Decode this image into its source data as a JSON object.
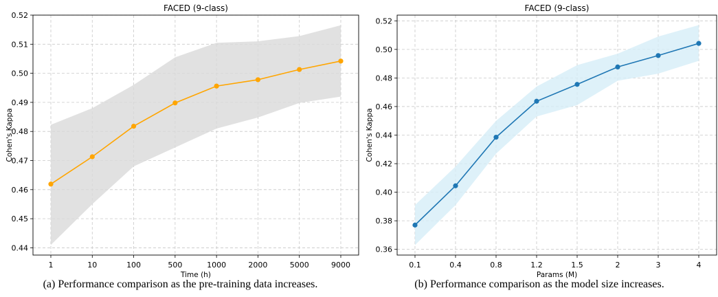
{
  "figure": {
    "captions": [
      "(a) Performance comparison as the pre-training data increases.",
      "(b) Performance comparison as the model size increases."
    ]
  },
  "chart_data": [
    {
      "type": "line",
      "title": "FACED (9-class)",
      "xlabel": "Time (h)",
      "ylabel": "Cohen's Kappa",
      "x_scale": "categorical",
      "categories": [
        "1",
        "10",
        "100",
        "500",
        "1000",
        "2000",
        "5000",
        "9000"
      ],
      "series": [
        {
          "values": [
            0.4619,
            0.4713,
            0.4818,
            0.4898,
            0.4956,
            0.4978,
            0.5013,
            0.5042
          ],
          "band_lower": [
            0.441,
            0.455,
            0.468,
            0.4745,
            0.481,
            0.4848,
            0.4898,
            0.492
          ],
          "band_upper": [
            0.4823,
            0.488,
            0.496,
            0.5055,
            0.5105,
            0.511,
            0.5128,
            0.5165
          ],
          "color": "#FFA500",
          "band_color": "#D9D9D9"
        }
      ],
      "ylim": [
        0.4375,
        0.52
      ],
      "yticks": [
        "0.44",
        "0.45",
        "0.46",
        "0.47",
        "0.48",
        "0.49",
        "0.50",
        "0.51",
        "0.52"
      ],
      "grid": true
    },
    {
      "type": "line",
      "title": "FACED (9-class)",
      "xlabel": "Params (M)",
      "ylabel": "Cohen's Kappa",
      "x_scale": "categorical",
      "categories": [
        "0.1",
        "0.4",
        "0.8",
        "1.2",
        "1.5",
        "2",
        "3",
        "4"
      ],
      "series": [
        {
          "values": [
            0.377,
            0.4045,
            0.4385,
            0.4637,
            0.4755,
            0.4877,
            0.4957,
            0.5042
          ],
          "band_lower": [
            0.363,
            0.391,
            0.427,
            0.453,
            0.461,
            0.478,
            0.483,
            0.492
          ],
          "band_upper": [
            0.391,
            0.418,
            0.45,
            0.474,
            0.489,
            0.497,
            0.509,
            0.517
          ],
          "color": "#1F77B4",
          "band_color": "#D6EDF8"
        }
      ],
      "ylim": [
        0.356,
        0.524
      ],
      "yticks": [
        "0.36",
        "0.38",
        "0.40",
        "0.42",
        "0.44",
        "0.46",
        "0.48",
        "0.50",
        "0.52"
      ],
      "grid": true
    }
  ]
}
